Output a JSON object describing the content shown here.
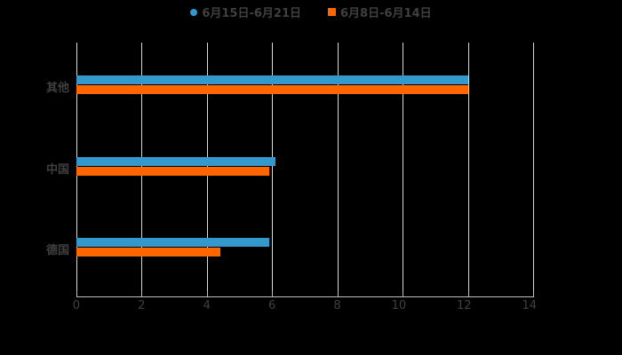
{
  "chart_data": {
    "type": "bar",
    "orientation": "horizontal",
    "categories": [
      "其他",
      "中国",
      "德国"
    ],
    "series": [
      {
        "name": "6月15日-6月21日",
        "color": "#3399cc",
        "values": [
          12.0,
          6.1,
          5.9
        ]
      },
      {
        "name": "6月8日-6月14日",
        "color": "#ff6600",
        "values": [
          12.0,
          5.9,
          4.4
        ]
      }
    ],
    "xlim": [
      0,
      14
    ],
    "xticks": [
      "0",
      "2",
      "4",
      "6",
      "8",
      "10",
      "12",
      "14"
    ],
    "grid": true,
    "legend_position": "top",
    "title": "",
    "xlabel": "",
    "ylabel": ""
  },
  "legend": {
    "s1": "6月15日-6月21日",
    "s2": "6月8日-6月14日"
  }
}
